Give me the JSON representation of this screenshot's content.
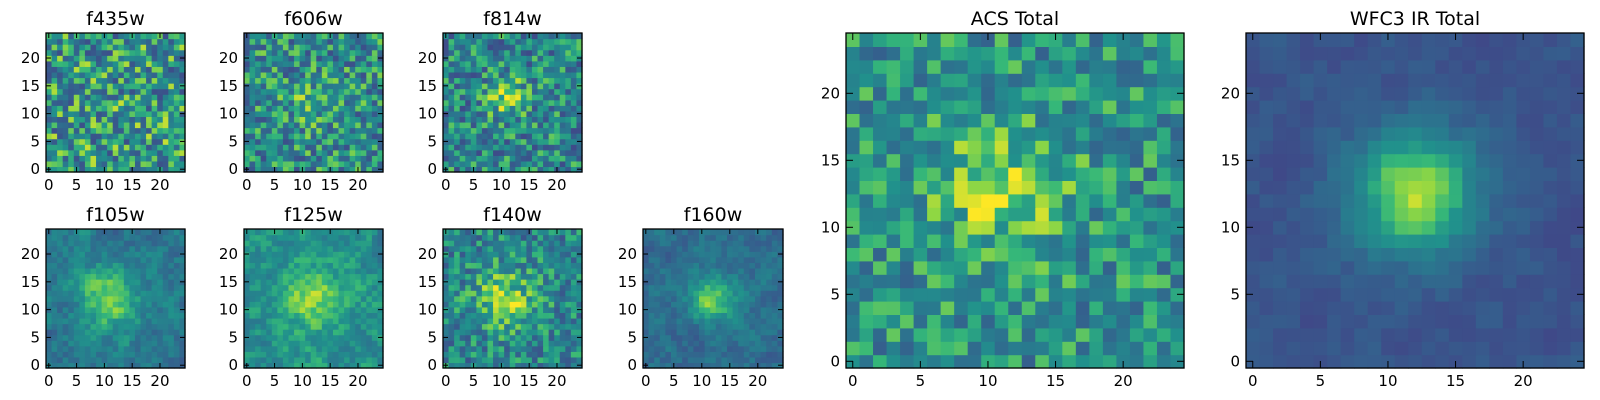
{
  "figure": {
    "colormap": "viridis",
    "image_size": [
      25,
      25
    ]
  },
  "chart_data": [
    {
      "type": "heatmap",
      "title": "f435w",
      "grid_size": 25,
      "xticks": [
        "0",
        "5",
        "10",
        "15",
        "20"
      ],
      "yticks": [
        "0",
        "5",
        "10",
        "15",
        "20"
      ],
      "xlim": [
        0,
        25
      ],
      "ylim": [
        0,
        25
      ],
      "seed": 11,
      "blob": {
        "cx": 11,
        "cy": 13,
        "amp": 0.02,
        "sigma": 3
      },
      "noise": 0.32,
      "base": 0.62
    },
    {
      "type": "heatmap",
      "title": "f606w",
      "grid_size": 25,
      "xticks": [
        "0",
        "5",
        "10",
        "15",
        "20"
      ],
      "yticks": [
        "0",
        "5",
        "10",
        "15",
        "20"
      ],
      "xlim": [
        0,
        25
      ],
      "ylim": [
        0,
        25
      ],
      "seed": 23,
      "blob": {
        "cx": 12,
        "cy": 12,
        "amp": 0.15,
        "sigma": 3
      },
      "noise": 0.28,
      "base": 0.58
    },
    {
      "type": "heatmap",
      "title": "f814w",
      "grid_size": 25,
      "xticks": [
        "0",
        "5",
        "10",
        "15",
        "20"
      ],
      "yticks": [
        "0",
        "5",
        "10",
        "15",
        "20"
      ],
      "xlim": [
        0,
        25
      ],
      "ylim": [
        0,
        25
      ],
      "seed": 37,
      "blob": {
        "cx": 11,
        "cy": 13,
        "amp": 0.3,
        "sigma": 2.6
      },
      "noise": 0.27,
      "base": 0.55
    },
    {
      "type": "heatmap",
      "title": "f105w",
      "grid_size": 25,
      "xticks": [
        "0",
        "5",
        "10",
        "15",
        "20"
      ],
      "yticks": [
        "0",
        "5",
        "10",
        "15",
        "20"
      ],
      "xlim": [
        0,
        25
      ],
      "ylim": [
        0,
        25
      ],
      "seed": 41,
      "blob": {
        "cx": 11,
        "cy": 12,
        "amp": 0.35,
        "sigma": 4
      },
      "noise": 0.2,
      "base": 0.5
    },
    {
      "type": "heatmap",
      "title": "f125w",
      "grid_size": 25,
      "xticks": [
        "0",
        "5",
        "10",
        "15",
        "20"
      ],
      "yticks": [
        "0",
        "5",
        "10",
        "15",
        "20"
      ],
      "xlim": [
        0,
        25
      ],
      "ylim": [
        0,
        25
      ],
      "seed": 53,
      "blob": {
        "cx": 12,
        "cy": 12,
        "amp": 0.25,
        "sigma": 4.5
      },
      "noise": 0.2,
      "base": 0.6
    },
    {
      "type": "heatmap",
      "title": "f140w",
      "grid_size": 25,
      "xticks": [
        "0",
        "5",
        "10",
        "15",
        "20"
      ],
      "yticks": [
        "0",
        "5",
        "10",
        "15",
        "20"
      ],
      "xlim": [
        0,
        25
      ],
      "ylim": [
        0,
        25
      ],
      "seed": 67,
      "blob": {
        "cx": 11,
        "cy": 12,
        "amp": 0.3,
        "sigma": 4
      },
      "noise": 0.22,
      "base": 0.55
    },
    {
      "type": "heatmap",
      "title": "f160w",
      "grid_size": 25,
      "xticks": [
        "0",
        "5",
        "10",
        "15",
        "20"
      ],
      "yticks": [
        "0",
        "5",
        "10",
        "15",
        "20"
      ],
      "xlim": [
        0,
        25
      ],
      "ylim": [
        0,
        25
      ],
      "seed": 79,
      "blob": {
        "cx": 12,
        "cy": 12,
        "amp": 0.4,
        "sigma": 3
      },
      "noise": 0.16,
      "base": 0.45
    },
    {
      "type": "heatmap",
      "title": "ACS Total",
      "grid_size": 25,
      "xticks": [
        "0",
        "5",
        "10",
        "15",
        "20"
      ],
      "yticks": [
        "0",
        "5",
        "10",
        "15",
        "20"
      ],
      "xlim": [
        0,
        25
      ],
      "ylim": [
        0,
        25
      ],
      "seed": 97,
      "blob": {
        "cx": 11,
        "cy": 13,
        "amp": 0.28,
        "sigma": 3.5
      },
      "noise": 0.22,
      "base": 0.6
    },
    {
      "type": "heatmap",
      "title": "WFC3 IR Total",
      "grid_size": 25,
      "xticks": [
        "0",
        "5",
        "10",
        "15",
        "20"
      ],
      "yticks": [
        "0",
        "5",
        "10",
        "15",
        "20"
      ],
      "xlim": [
        0,
        25
      ],
      "ylim": [
        0,
        25
      ],
      "seed": 113,
      "blob": {
        "cx": 12,
        "cy": 12.5,
        "amp": 0.6,
        "sigma": 3.2
      },
      "noise": 0.09,
      "base": 0.33
    }
  ]
}
